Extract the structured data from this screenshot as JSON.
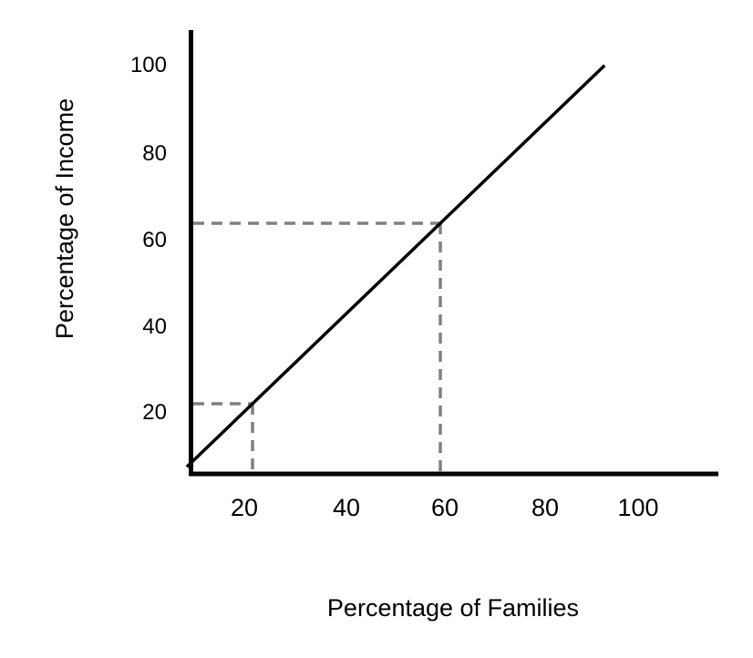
{
  "chart_data": {
    "type": "line",
    "title": "",
    "xlabel": "Percentage of Families",
    "ylabel": "Percentage of Income",
    "x_ticks": [
      "20",
      "40",
      "60",
      "80",
      "100"
    ],
    "y_ticks": [
      "20",
      "40",
      "60",
      "80",
      "100"
    ],
    "series": [
      {
        "points": [
          [
            6,
            6
          ],
          [
            95,
            95
          ]
        ],
        "color": "#000000"
      }
    ],
    "reference_points": [
      [
        20,
        20
      ],
      [
        60,
        60
      ]
    ],
    "reference_line_color": "#808080",
    "reference_line_style": "dashed",
    "grid": false
  }
}
